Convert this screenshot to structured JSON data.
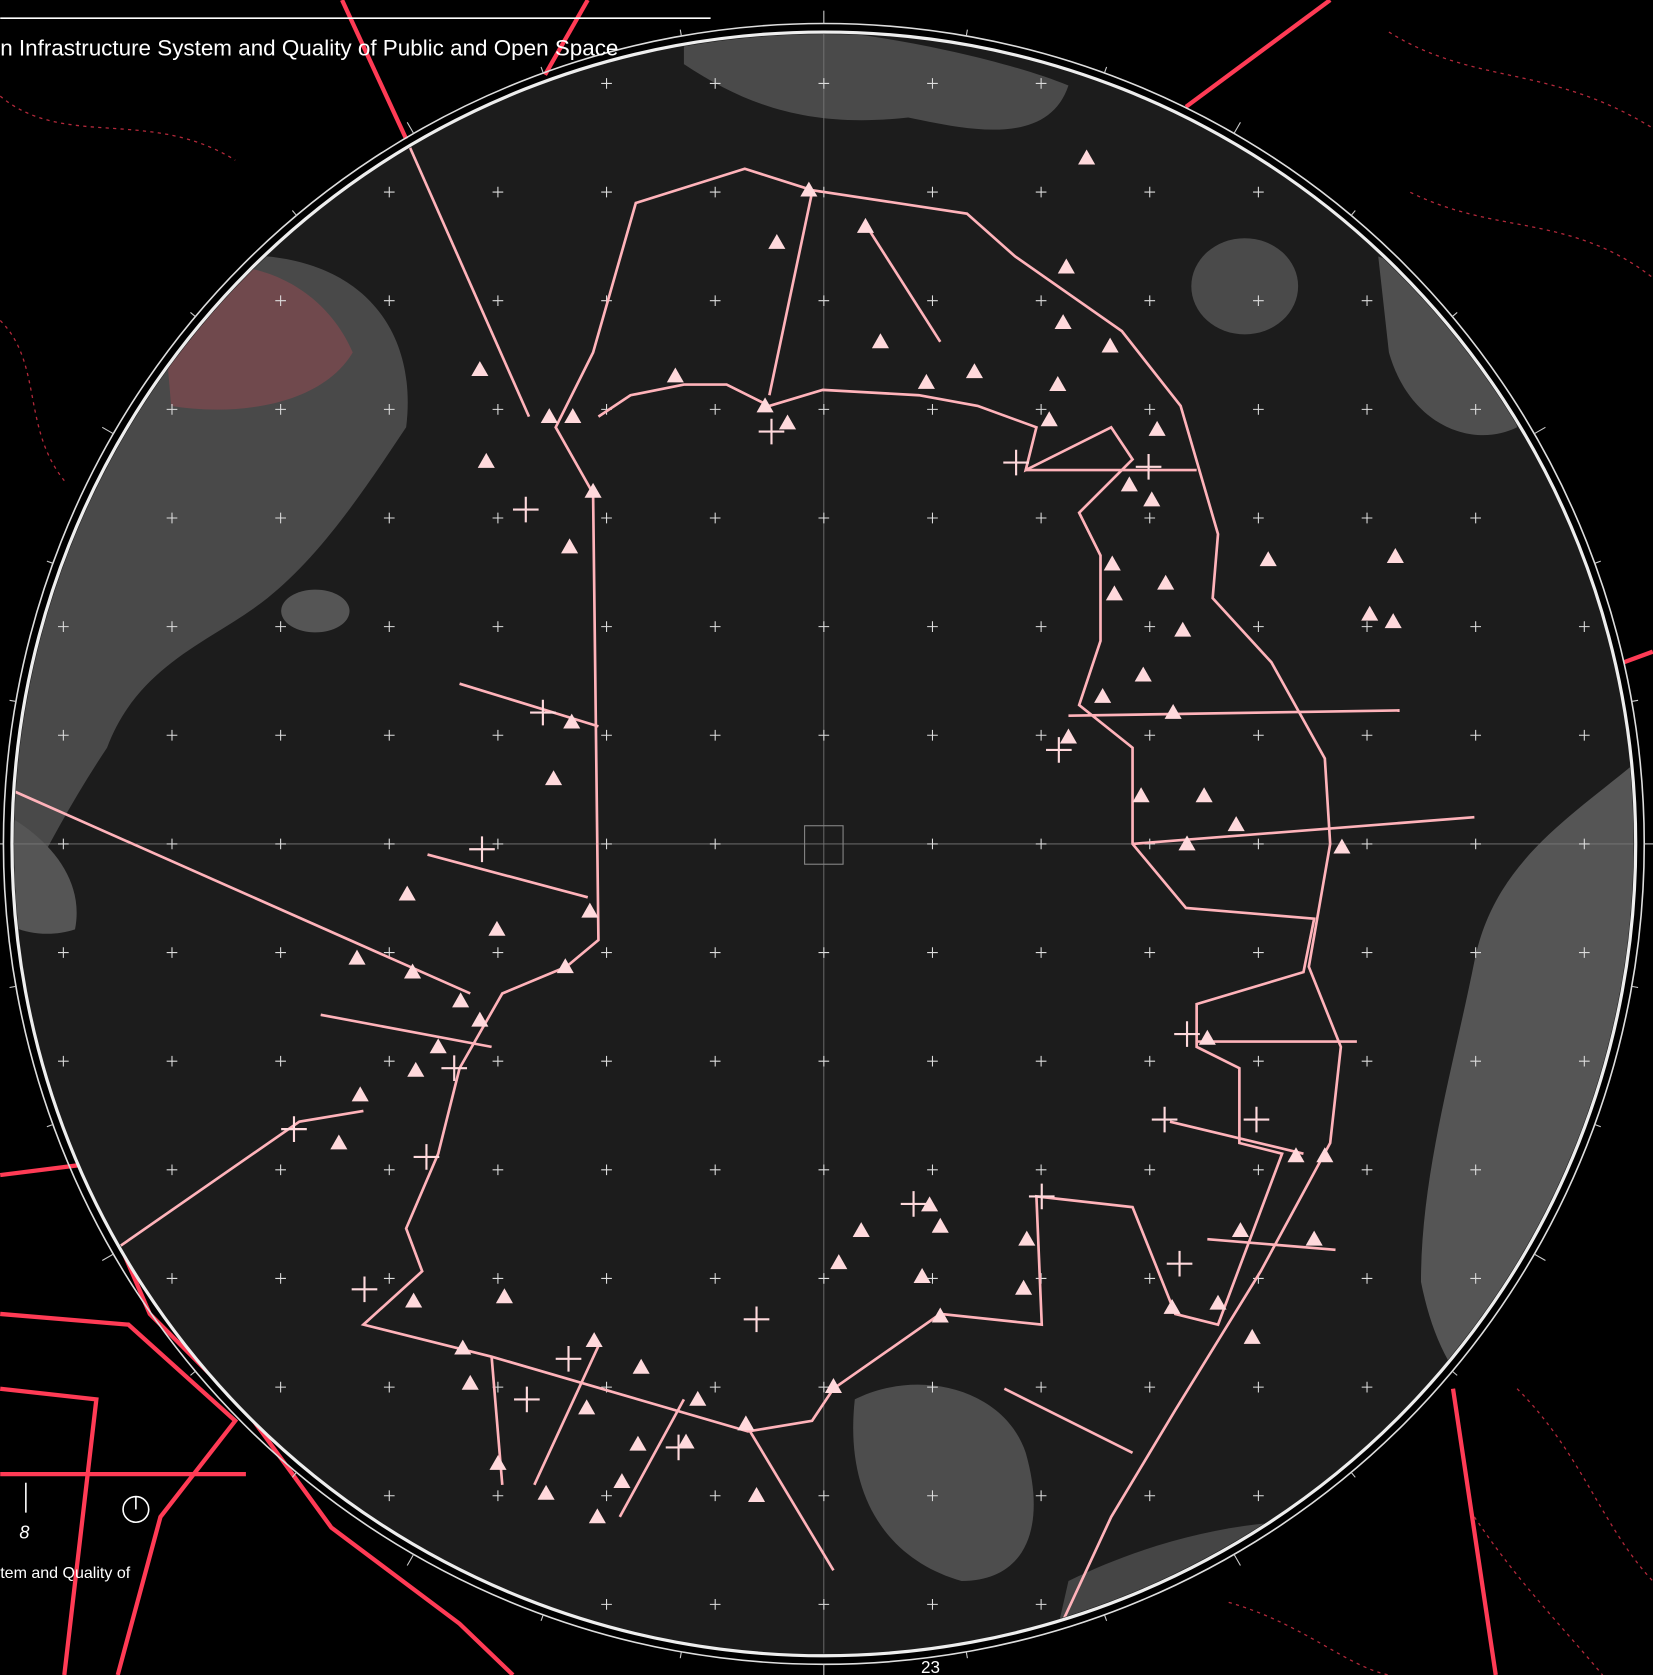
{
  "header": {
    "title": "n Infrastructure System and Quality of Public and Open Space"
  },
  "legend": {
    "scale_label": "8",
    "caption": "tem and Quality of"
  },
  "footer": {
    "page_number": "23"
  }
}
